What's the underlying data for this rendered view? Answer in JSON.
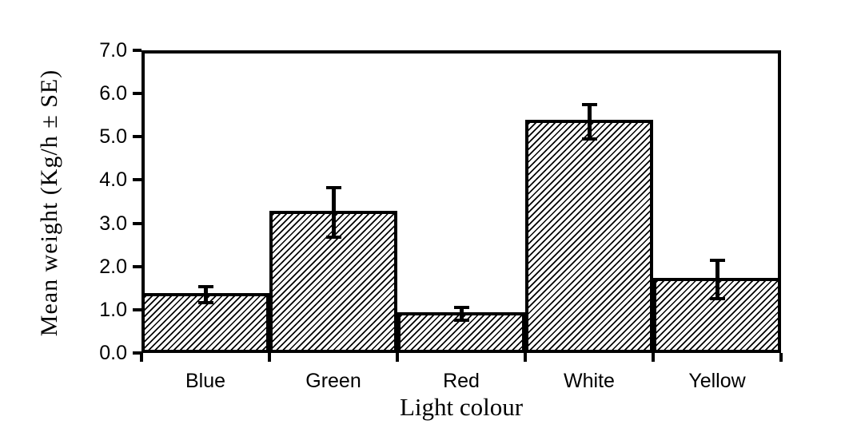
{
  "figure": {
    "background": "#ffffff",
    "ink_color": "#000000"
  },
  "chart_data": {
    "type": "bar",
    "title": "",
    "categories": [
      "Blue",
      "Green",
      "Red",
      "White",
      "Yellow"
    ],
    "values": [
      1.35,
      3.25,
      0.9,
      5.35,
      1.7
    ],
    "errors_se": [
      0.18,
      0.57,
      0.15,
      0.4,
      0.45
    ],
    "xlabel": "Light colour",
    "ylabel": "Mean weight (Kg/h ± SE)",
    "ylim": [
      0,
      7
    ],
    "ytick_step": 1.0,
    "ytick_labels": [
      "0.0",
      "1.0",
      "2.0",
      "3.0",
      "4.0",
      "5.0",
      "6.0",
      "7.0"
    ],
    "grid": false,
    "legend_position": "none",
    "bar_style": {
      "fill": "diagonal-hatch",
      "hatch_direction": "forward-slash",
      "hatch_color": "#000000",
      "bar_background": "#ffffff",
      "border_color": "#000000",
      "gap_percent": 0
    }
  }
}
